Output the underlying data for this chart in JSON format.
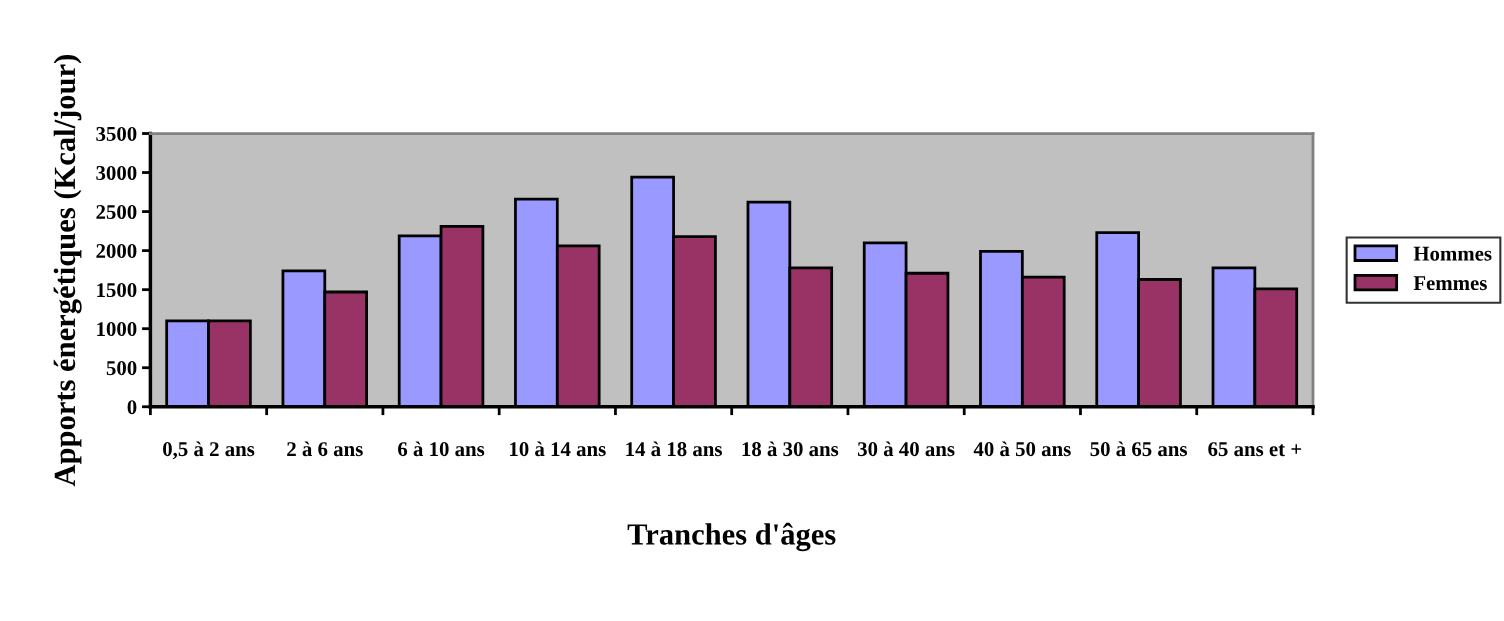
{
  "chart_data": {
    "type": "bar",
    "xlabel": "Tranches d'âges",
    "ylabel": "Apports énergétiques (Kcal/jour)",
    "categories": [
      "0,5 à 2 ans",
      "2 à 6 ans",
      "6 à 10 ans",
      "10 à 14 ans",
      "14 à 18 ans",
      "18 à 30 ans",
      "30 à 40 ans",
      "40 à 50 ans",
      "50 à 65 ans",
      "65 ans et +"
    ],
    "series": [
      {
        "name": "Hommes",
        "color": "#9999ff",
        "values": [
          1100,
          1740,
          2190,
          2660,
          2940,
          2620,
          2100,
          1990,
          2230,
          1780
        ]
      },
      {
        "name": "Femmes",
        "color": "#993366",
        "values": [
          1100,
          1470,
          2310,
          2060,
          2180,
          1780,
          1710,
          1660,
          1630,
          1510
        ]
      }
    ],
    "ylim": [
      0,
      3500
    ],
    "yticks": [
      0,
      500,
      1000,
      1500,
      2000,
      2500,
      3000,
      3500
    ],
    "grid": false,
    "legend": "right"
  }
}
